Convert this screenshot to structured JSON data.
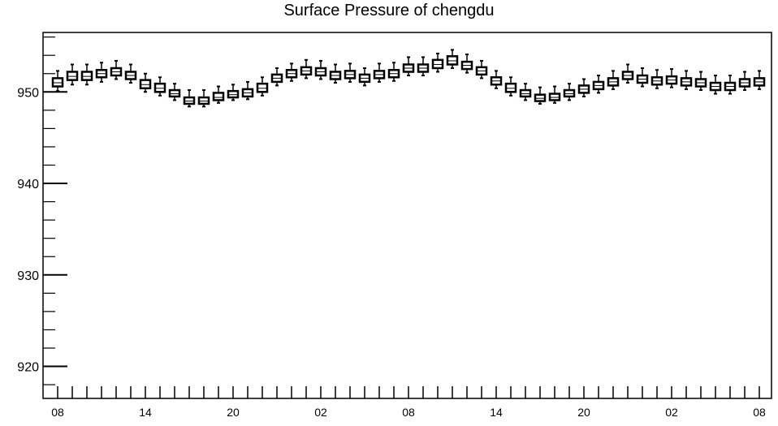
{
  "chart_data": {
    "type": "boxplot",
    "title": "Surface Pressure of chengdu",
    "xlabel": "",
    "ylabel": "",
    "ylim": [
      916.5,
      956.5
    ],
    "yticks": [
      920,
      930,
      940,
      950
    ],
    "ytick_labels": [
      "920",
      "930",
      "940",
      "950"
    ],
    "y_minor_step": 2,
    "xtick_labels": [
      "08",
      "14",
      "20",
      "02",
      "08",
      "14",
      "20",
      "02",
      "08"
    ],
    "xtick_label_hours": [
      0,
      6,
      12,
      18,
      24,
      30,
      36,
      42,
      48
    ],
    "grid": false,
    "hours": [
      0,
      1,
      2,
      3,
      4,
      5,
      6,
      7,
      8,
      9,
      10,
      11,
      12,
      13,
      14,
      15,
      16,
      17,
      18,
      19,
      20,
      21,
      22,
      23,
      24,
      25,
      26,
      27,
      28,
      29,
      30,
      31,
      32,
      33,
      34,
      35,
      36,
      37,
      38,
      39,
      40,
      41,
      42,
      43,
      44,
      45,
      46,
      47,
      48
    ],
    "median": [
      951.0,
      951.7,
      951.7,
      952.0,
      952.2,
      951.8,
      950.8,
      950.4,
      949.8,
      949.0,
      949.0,
      949.4,
      949.7,
      949.9,
      950.4,
      951.5,
      952.0,
      952.3,
      952.2,
      951.8,
      951.9,
      951.5,
      951.9,
      952.0,
      952.6,
      952.6,
      953.0,
      953.4,
      952.9,
      952.3,
      951.2,
      950.4,
      949.8,
      949.3,
      949.4,
      949.8,
      950.3,
      950.7,
      951.1,
      951.8,
      951.4,
      951.2,
      951.3,
      951.1,
      951.0,
      950.6,
      950.6,
      951.0,
      951.1
    ],
    "q1": [
      950.6,
      951.3,
      951.3,
      951.6,
      951.8,
      951.4,
      950.4,
      950.0,
      949.5,
      948.7,
      948.7,
      949.1,
      949.4,
      949.5,
      950.0,
      951.1,
      951.6,
      951.9,
      951.8,
      951.4,
      951.5,
      951.1,
      951.5,
      951.6,
      952.2,
      952.2,
      952.6,
      953.0,
      952.5,
      951.9,
      950.8,
      950.0,
      949.5,
      949.0,
      949.1,
      949.5,
      949.9,
      950.3,
      950.7,
      951.4,
      951.0,
      950.8,
      950.9,
      950.7,
      950.6,
      950.2,
      950.2,
      950.6,
      950.7
    ],
    "q3": [
      951.5,
      952.2,
      952.2,
      952.4,
      952.6,
      952.2,
      951.3,
      950.9,
      950.2,
      949.4,
      949.4,
      949.9,
      950.1,
      950.3,
      950.9,
      951.9,
      952.4,
      952.7,
      952.6,
      952.2,
      952.3,
      951.9,
      952.3,
      952.4,
      953.0,
      953.0,
      953.5,
      953.9,
      953.3,
      952.7,
      951.6,
      950.9,
      950.2,
      949.7,
      949.8,
      950.2,
      950.7,
      951.1,
      951.5,
      952.2,
      951.8,
      951.6,
      951.7,
      951.5,
      951.4,
      951.0,
      951.0,
      951.4,
      951.5
    ],
    "whisker_low": [
      950.1,
      950.8,
      950.8,
      951.1,
      951.4,
      951.0,
      950.0,
      949.6,
      949.1,
      948.4,
      948.4,
      948.8,
      949.1,
      949.2,
      949.6,
      950.7,
      951.2,
      951.5,
      951.4,
      951.0,
      951.1,
      950.7,
      951.1,
      951.2,
      951.8,
      951.8,
      952.2,
      952.6,
      952.1,
      951.5,
      950.4,
      949.6,
      949.1,
      948.7,
      948.8,
      949.1,
      949.5,
      949.9,
      950.3,
      951.0,
      950.6,
      950.4,
      950.5,
      950.3,
      950.2,
      949.8,
      949.8,
      950.2,
      950.3
    ],
    "whisker_high": [
      952.3,
      953.0,
      953.0,
      953.2,
      953.4,
      953.0,
      952.0,
      951.6,
      950.9,
      950.2,
      950.2,
      950.6,
      950.8,
      951.1,
      951.6,
      952.6,
      953.1,
      953.5,
      953.4,
      953.0,
      953.1,
      952.6,
      953.1,
      953.2,
      953.8,
      953.8,
      954.2,
      954.6,
      954.1,
      953.4,
      952.3,
      951.6,
      950.9,
      950.5,
      950.6,
      950.9,
      951.4,
      951.8,
      952.3,
      953.0,
      952.6,
      952.4,
      952.5,
      952.3,
      952.2,
      951.8,
      951.8,
      952.2,
      952.3
    ]
  }
}
